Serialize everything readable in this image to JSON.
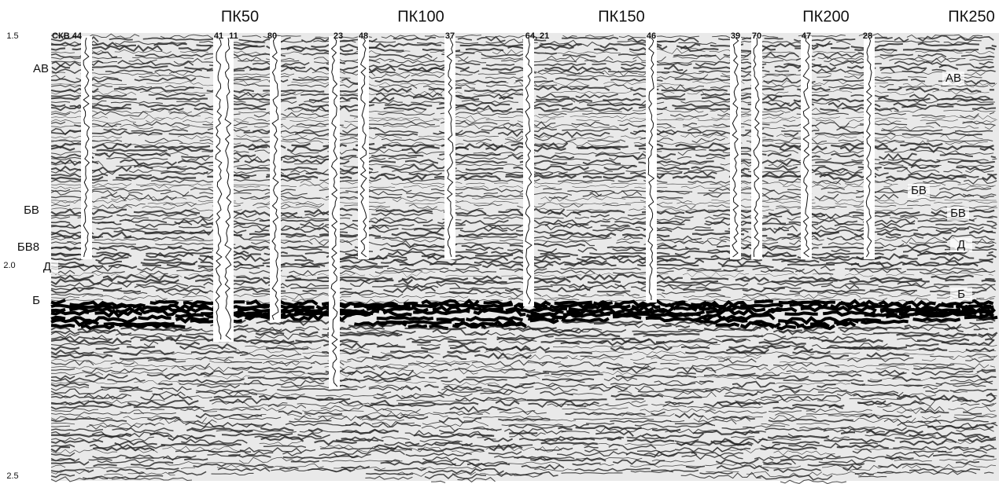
{
  "pickets": [
    "ПК50",
    "ПК100",
    "ПК150",
    "ПК200",
    "ПК250"
  ],
  "time_labels": [
    "1.5",
    "2.0",
    "2.5"
  ],
  "wells": [
    "СКВ 44",
    "41",
    "11",
    "80",
    "23",
    "48",
    "37",
    "64, 21",
    "46",
    "39",
    "70",
    "47",
    "28"
  ],
  "horizons_left": [
    "АВ",
    "БВ",
    "БВ8",
    "Д",
    "Б"
  ],
  "horizons_right": [
    "АВ",
    "БВ",
    "БВ",
    "Д",
    "Б"
  ]
}
